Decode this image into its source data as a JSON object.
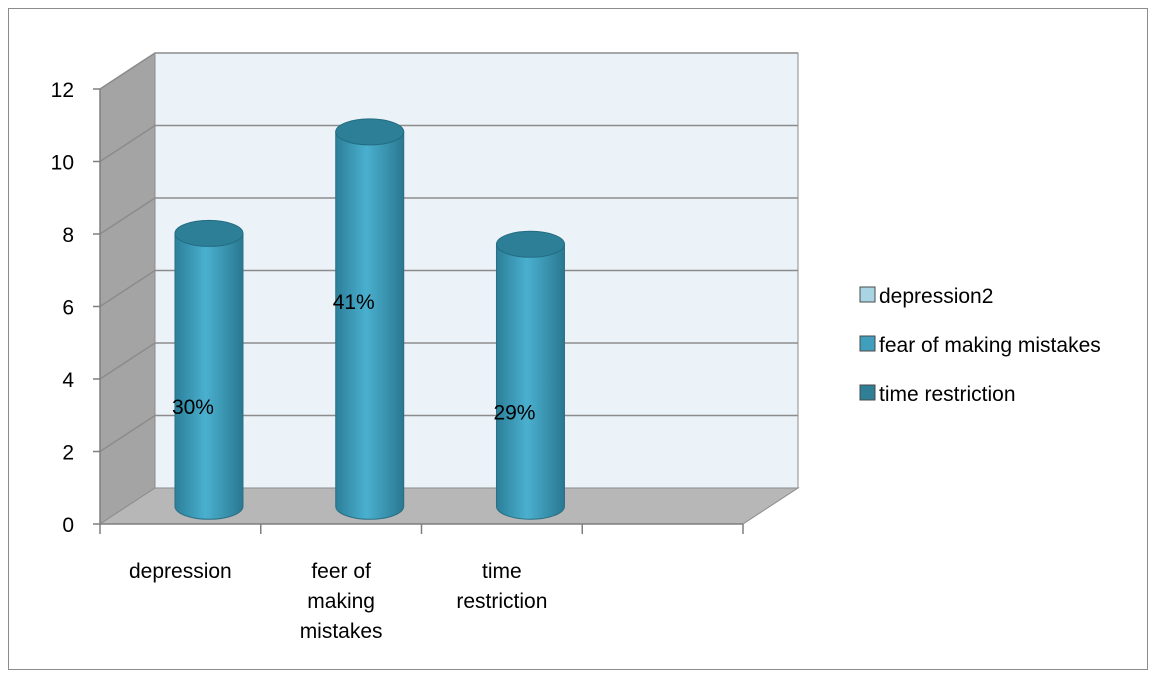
{
  "chart_data": {
    "type": "bar",
    "style": "3d-cylinder",
    "categories": [
      "depression",
      "feer of making mistakes",
      "time restriction"
    ],
    "category_lines": [
      [
        "depression"
      ],
      [
        "feer of",
        "making",
        "mistakes"
      ],
      [
        "time",
        "restriction"
      ]
    ],
    "values": [
      7.5,
      10.3,
      7.2
    ],
    "data_labels": [
      "30%",
      "41%",
      "29%"
    ],
    "legend": [
      {
        "name": "depression2",
        "color": "#a9d4e4"
      },
      {
        "name": "fear of making mistakes",
        "color": "#3f9fbd"
      },
      {
        "name": "time restriction",
        "color": "#2f7f96"
      }
    ],
    "legend_position": "right",
    "yticks": [
      0,
      2,
      4,
      6,
      8,
      10,
      12
    ],
    "ylim": [
      0,
      12
    ],
    "grid": true,
    "colors": {
      "bar": "#3a9ab8",
      "wall": "#ebf2f8",
      "side_wall": "#a4a4a4",
      "floor": "#b7b7b7",
      "grid": "#8c8c8c"
    }
  }
}
